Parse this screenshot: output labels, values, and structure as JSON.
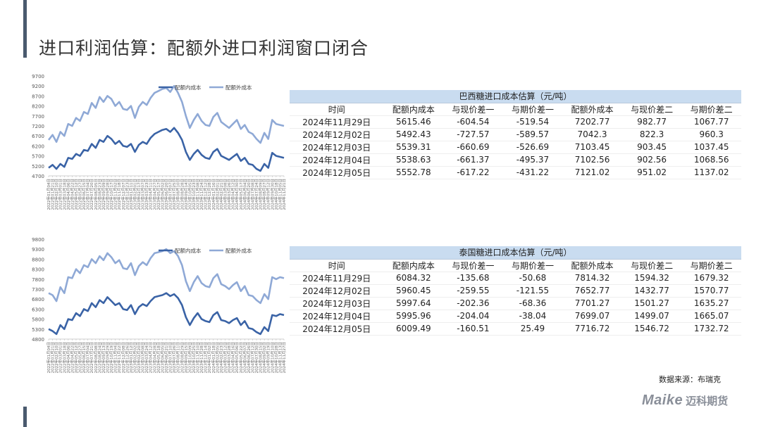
{
  "title": "进口利润估算：配额外进口利润窗口闭合",
  "source": "数据来源：布瑞克",
  "logo": {
    "mark": "Maike",
    "name": "迈科期货"
  },
  "colors": {
    "accent_bar": "#4a5a6e",
    "series_in": "#3a63a6",
    "series_out": "#8fa9d6",
    "table_header": "#c9dcf0"
  },
  "tables": [
    {
      "caption": "巴西糖进口成本估算（元/吨）",
      "headers": [
        "时间",
        "配额内成本",
        "与现价差一",
        "与期价差一",
        "配额外成本",
        "与现价差二",
        "与期价差二"
      ],
      "rows": [
        [
          "2024年11月29日",
          "5615.46",
          "-604.54",
          "-519.54",
          "7202.77",
          "982.77",
          "1067.77"
        ],
        [
          "2024年12月02日",
          "5492.43",
          "-727.57",
          "-589.57",
          "7042.3",
          "822.3",
          "960.3"
        ],
        [
          "2024年12月03日",
          "5539.31",
          "-660.69",
          "-526.69",
          "7103.45",
          "903.45",
          "1037.45"
        ],
        [
          "2024年12月04日",
          "5538.63",
          "-661.37",
          "-495.37",
          "7102.56",
          "902.56",
          "1068.56"
        ],
        [
          "2024年12月05日",
          "5552.78",
          "-617.22",
          "-431.22",
          "7121.02",
          "951.02",
          "1137.02"
        ]
      ]
    },
    {
      "caption": "泰国糖进口成本估算（元/吨）",
      "headers": [
        "时间",
        "配额内成本",
        "与现价差一",
        "与期价差一",
        "配额外成本",
        "与现价差二",
        "与期价差二"
      ],
      "rows": [
        [
          "2024年11月29日",
          "6084.32",
          "-135.68",
          "-50.68",
          "7814.32",
          "1594.32",
          "1679.32"
        ],
        [
          "2024年12月02日",
          "5960.45",
          "-259.55",
          "-121.55",
          "7652.77",
          "1432.77",
          "1570.77"
        ],
        [
          "2024年12月03日",
          "5997.64",
          "-202.36",
          "-68.36",
          "7701.27",
          "1501.27",
          "1635.27"
        ],
        [
          "2024年12月04日",
          "5995.96",
          "-204.04",
          "-38.04",
          "7699.07",
          "1499.07",
          "1665.07"
        ],
        [
          "2024年12月05日",
          "6009.49",
          "-160.51",
          "25.49",
          "7716.72",
          "1546.72",
          "1732.72"
        ]
      ]
    }
  ],
  "chart_data": [
    {
      "type": "line",
      "grid": false,
      "legend": "top-center",
      "ylim": [
        4700,
        9700
      ],
      "yticks": [
        4700,
        5200,
        5700,
        6200,
        6700,
        7200,
        7700,
        8200,
        8700,
        9200,
        9700
      ],
      "x": [
        "2022年01月04日",
        "2022年01月21日",
        "2022年02月10日",
        "2022年03月01日",
        "2022年03月18日",
        "2022年04月06日",
        "2022年04月22日",
        "2022年05月12日",
        "2022年05月27日",
        "2022年06月15日",
        "2022年07月04日",
        "2022年07月20日",
        "2022年08月05日",
        "2022年08月23日",
        "2022年09月09日",
        "2022年09月28日",
        "2022年10月17日",
        "2022年11月02日",
        "2022年11月18日",
        "2022年12月07日",
        "2022年12月23日",
        "2023年01月11日",
        "2023年02月01日",
        "2023年02月17日",
        "2023年03月07日",
        "2023年03月23日",
        "2023年04月11日",
        "2023年04月27日",
        "2023年05月17日",
        "2023年06月02日",
        "2023年06月20日",
        "2023年07月07日",
        "2023年07月25日",
        "2023年08月10日",
        "2023年08月28日",
        "2023年09月14日",
        "2023年10月05日",
        "2023年10月23日",
        "2023年11月08日",
        "2023年11月24日",
        "2023年12月12日",
        "2023年12月28日",
        "2024年01月16日",
        "2024年02月01日",
        "2024年02月21日",
        "2024年03月08日",
        "2024年03月26日",
        "2024年04月12日",
        "2024年04月30日",
        "2024年05月17日",
        "2024年06月04日",
        "2024年06月20日",
        "2024年07月08日",
        "2024年07月24日",
        "2024年08月09日",
        "2024年08月27日",
        "2024年09月12日",
        "2024年09月30日",
        "2024年10月18日",
        "2024年11月05日",
        "2024年11月21日"
      ],
      "series": [
        {
          "name": "配额内成本",
          "values": [
            5100,
            5250,
            5050,
            5300,
            5150,
            5600,
            5550,
            5800,
            5700,
            6000,
            5950,
            6300,
            6100,
            6500,
            6400,
            6700,
            6550,
            6300,
            6450,
            6200,
            6150,
            6300,
            5900,
            6250,
            6400,
            6300,
            6600,
            6800,
            6900,
            7000,
            7050,
            6900,
            7100,
            6850,
            6500,
            5900,
            5500,
            5800,
            6000,
            5750,
            5600,
            5550,
            5900,
            6050,
            5700,
            5600,
            5500,
            5650,
            5800,
            5450,
            5600,
            5300,
            5250,
            5050,
            4950,
            5300,
            5100,
            5850,
            5700,
            5650,
            5600
          ]
        },
        {
          "name": "配额外成本",
          "values": [
            6500,
            6750,
            6400,
            6900,
            6700,
            7300,
            7200,
            7600,
            7450,
            7900,
            7800,
            8350,
            8100,
            8650,
            8400,
            8700,
            8550,
            8200,
            8400,
            8050,
            8000,
            8200,
            7600,
            8150,
            8400,
            8250,
            8600,
            8850,
            8950,
            9050,
            9100,
            8900,
            9200,
            8850,
            8400,
            7700,
            7100,
            7500,
            7800,
            7450,
            7250,
            7200,
            7650,
            7850,
            7400,
            7250,
            7100,
            7300,
            7500,
            7050,
            7250,
            6900,
            6800,
            6550,
            6350,
            6850,
            6550,
            7500,
            7300,
            7250,
            7200
          ]
        }
      ]
    },
    {
      "type": "line",
      "grid": false,
      "legend": "top-center",
      "ylim": [
        4800,
        9800
      ],
      "yticks": [
        4800,
        5300,
        5800,
        6300,
        6800,
        7300,
        7800,
        8300,
        8800,
        9300,
        9800
      ],
      "x": [
        "2022年01月04日",
        "2022年01月21日",
        "2022年02月10日",
        "2022年03月01日",
        "2022年03月18日",
        "2022年04月06日",
        "2022年04月22日",
        "2022年05月12日",
        "2022年05月27日",
        "2022年06月15日",
        "2022年07月04日",
        "2022年07月21日",
        "2022年08月08日",
        "2022年08月24日",
        "2022年09月13日",
        "2022年09月29日",
        "2022年10月19日",
        "2022年11月04日",
        "2022年11月22日",
        "2022年12月08日",
        "2022年12月26日",
        "2023年01月12日",
        "2023年02月02日",
        "2023年02月20日",
        "2023年03月08日",
        "2023年03月24日",
        "2023年04月12日",
        "2023年04月28日",
        "2023年05月18日",
        "2023年06月05日",
        "2023年06月21日",
        "2023年07月10日",
        "2023年07月26日",
        "2023年08月11日",
        "2023年08月29日",
        "2023年09月15日",
        "2023年10月09日",
        "2023年10月25日",
        "2023年11月10日",
        "2023年11月28日",
        "2023年12月14日",
        "2024年01月02日",
        "2024年01月18日",
        "2024年02月05日",
        "2024年02月23日",
        "2024年03月12日",
        "2024年03月28日",
        "2024年04月16日",
        "2024年05月06日",
        "2024年05月22日",
        "2024年06月07日",
        "2024年06月26日",
        "2024年07月12日",
        "2024年07月30日",
        "2024年08月15日",
        "2024年09月02日",
        "2024年09月19日",
        "2024年10月10日",
        "2024年10月28日",
        "2024年11月13日",
        "2024年11月27日"
      ],
      "series": [
        {
          "name": "配额内成本",
          "values": [
            5300,
            5200,
            5050,
            5500,
            5300,
            5800,
            5750,
            6100,
            5950,
            6300,
            6200,
            6600,
            6400,
            6750,
            6600,
            6900,
            6700,
            6500,
            6600,
            6300,
            6250,
            6500,
            6050,
            6400,
            6550,
            6450,
            6700,
            6900,
            6950,
            7000,
            7100,
            6950,
            7050,
            6850,
            6500,
            5900,
            5500,
            5850,
            6100,
            5800,
            5700,
            5650,
            6000,
            6150,
            5750,
            5700,
            5600,
            5750,
            5850,
            5500,
            5700,
            5350,
            5300,
            5150,
            5050,
            5400,
            5200,
            6000,
            5950,
            6050,
            6000
          ]
        },
        {
          "name": "配额外成本",
          "values": [
            7100,
            7000,
            6700,
            7400,
            7100,
            7900,
            7850,
            8300,
            8100,
            8500,
            8400,
            8800,
            8600,
            8950,
            8750,
            9100,
            8900,
            8600,
            8750,
            8350,
            8300,
            8600,
            8000,
            8450,
            8650,
            8500,
            8850,
            9100,
            9150,
            9200,
            9300,
            9100,
            9200,
            8950,
            8500,
            7700,
            7200,
            7650,
            7950,
            7600,
            7450,
            7400,
            7850,
            8050,
            7550,
            7450,
            7300,
            7500,
            7650,
            7200,
            7450,
            7000,
            6950,
            6750,
            6600,
            7050,
            6800,
            7900,
            7800,
            7900,
            7850
          ]
        }
      ]
    }
  ]
}
